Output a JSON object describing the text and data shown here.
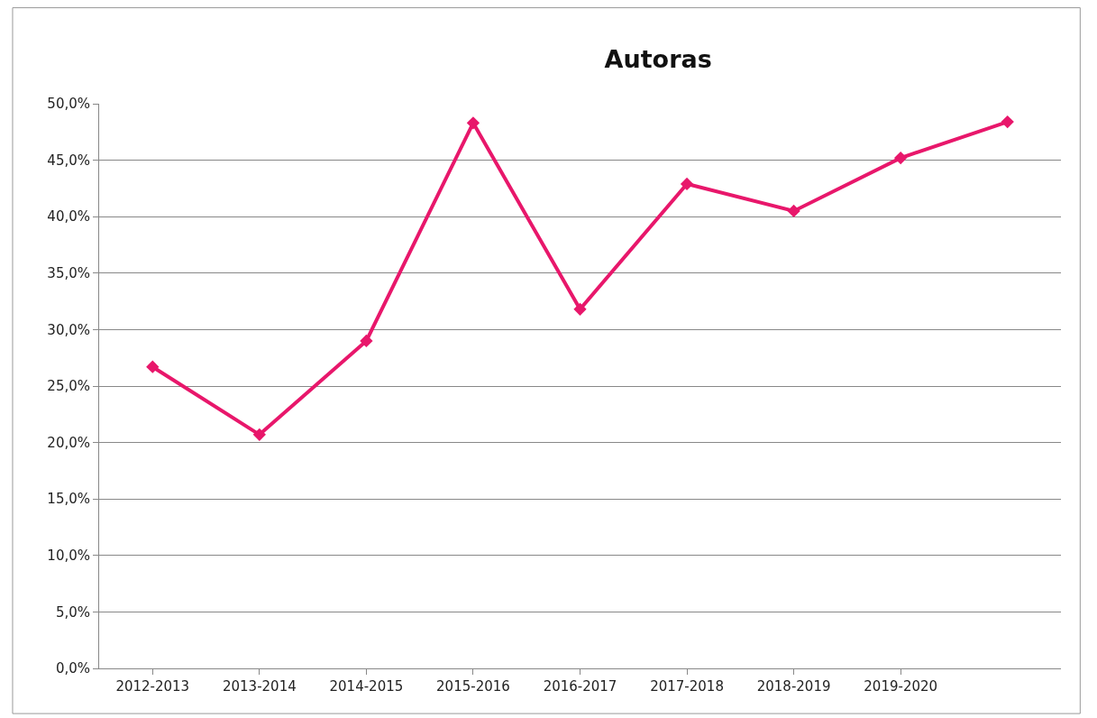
{
  "chart_data": {
    "type": "line",
    "title": "Autoras",
    "categories": [
      "2012-2013",
      "2013-2014",
      "2014-2015",
      "2015-2016",
      "2016-2017",
      "2017-2018",
      "2018-2019",
      "2019-2020",
      null
    ],
    "series": [
      {
        "color": "#e8176b",
        "values": [
          26.7,
          20.7,
          29.0,
          48.3,
          31.8,
          42.9,
          40.5,
          45.2,
          48.4
        ]
      }
    ],
    "ylim": [
      0,
      50
    ],
    "yticks": [
      {
        "value": 0,
        "label": "0,0%"
      },
      {
        "value": 5,
        "label": "5,0%"
      },
      {
        "value": 10,
        "label": "10,0%"
      },
      {
        "value": 15,
        "label": "15,0%"
      },
      {
        "value": 20,
        "label": "20,0%"
      },
      {
        "value": 25,
        "label": "25,0%"
      },
      {
        "value": 30,
        "label": "30,0%"
      },
      {
        "value": 35,
        "label": "35,0%"
      },
      {
        "value": 40,
        "label": "40,0%"
      },
      {
        "value": 45,
        "label": "45,0%"
      },
      {
        "value": 50,
        "label": "50,0%"
      }
    ],
    "grid": "y",
    "legend": false,
    "marker": "diamond",
    "line_style": "solid"
  }
}
